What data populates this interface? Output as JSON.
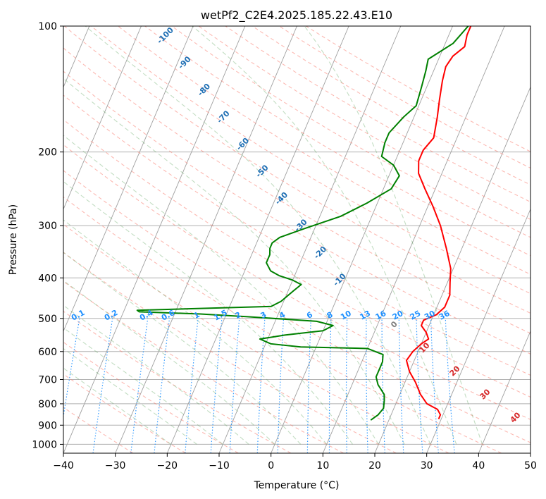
{
  "chart_data": {
    "type": "line",
    "title": "wetPf2_C2E4.2025.185.22.43.E10",
    "xlabel": "Temperature (°C)",
    "ylabel": "Pressure (hPa)",
    "xlim": [
      -40,
      50
    ],
    "ylim": [
      1050,
      100
    ],
    "y_scale": "log",
    "grid": true,
    "x_ticks": [
      "−40",
      "−30",
      "−20",
      "−10",
      "0",
      "10",
      "20",
      "30",
      "40",
      "50"
    ],
    "x_tick_values": [
      -40,
      -30,
      -20,
      -10,
      0,
      10,
      20,
      30,
      40,
      50
    ],
    "y_ticks": [
      "100",
      "200",
      "300",
      "400",
      "500",
      "600",
      "700",
      "800",
      "900",
      "1000"
    ],
    "y_tick_values": [
      100,
      200,
      300,
      400,
      500,
      600,
      700,
      800,
      900,
      1000
    ],
    "dry_adiabat_labels": [
      "-100",
      "-90",
      "-80",
      "-70",
      "-60",
      "-50",
      "-40",
      "-30",
      "-20",
      "-10",
      "0",
      "10",
      "20",
      "30",
      "40"
    ],
    "mixing_ratio_labels": [
      "0.1",
      "0.2",
      "0.4",
      "0.6",
      "1",
      "1.5",
      "2",
      "3",
      "4",
      "6",
      "8",
      "10",
      "13",
      "16",
      "20",
      "25",
      "30",
      "36"
    ],
    "mixing_ratio_values": [
      0.1,
      0.2,
      0.4,
      0.6,
      1,
      1.5,
      2,
      3,
      4,
      6,
      8,
      10,
      13,
      16,
      20,
      25,
      30,
      36
    ],
    "series": [
      {
        "color": "#ff0000",
        "points": [
          [
            29.5,
            870
          ],
          [
            29.5,
            850
          ],
          [
            28.5,
            825
          ],
          [
            26,
            800
          ],
          [
            24,
            760
          ],
          [
            22,
            710
          ],
          [
            20,
            670
          ],
          [
            18.5,
            630
          ],
          [
            19,
            600
          ],
          [
            20,
            575
          ],
          [
            21,
            560
          ],
          [
            20,
            540
          ],
          [
            18.5,
            520
          ],
          [
            18.5,
            505
          ],
          [
            20.5,
            490
          ],
          [
            21.5,
            470
          ],
          [
            21.5,
            440
          ],
          [
            20.5,
            410
          ],
          [
            19.5,
            380
          ],
          [
            17,
            340
          ],
          [
            14,
            300
          ],
          [
            11,
            270
          ],
          [
            8,
            245
          ],
          [
            5.5,
            225
          ],
          [
            4.5,
            210
          ],
          [
            4.5,
            198
          ],
          [
            5.5,
            185
          ],
          [
            4.5,
            165
          ],
          [
            3.5,
            150
          ],
          [
            2.5,
            135
          ],
          [
            2,
            125
          ],
          [
            2.5,
            118
          ],
          [
            4,
            112
          ],
          [
            3.5,
            105
          ],
          [
            3.5,
            100
          ]
        ]
      },
      {
        "color": "#008000",
        "points": [
          [
            16.5,
            875
          ],
          [
            17.5,
            850
          ],
          [
            18,
            820
          ],
          [
            17.5,
            785
          ],
          [
            17,
            760
          ],
          [
            15,
            720
          ],
          [
            14,
            690
          ],
          [
            14,
            660
          ],
          [
            14,
            635
          ],
          [
            13.5,
            610
          ],
          [
            10,
            590
          ],
          [
            -3,
            585
          ],
          [
            -9,
            575
          ],
          [
            -11.5,
            560
          ],
          [
            -7,
            548
          ],
          [
            0,
            535
          ],
          [
            1.5,
            520
          ],
          [
            -2,
            508
          ],
          [
            -16,
            495
          ],
          [
            -25,
            488
          ],
          [
            -37,
            482
          ],
          [
            -37.5,
            478
          ],
          [
            -12,
            468
          ],
          [
            -10.5,
            455
          ],
          [
            -9,
            430
          ],
          [
            -8,
            415
          ],
          [
            -10,
            405
          ],
          [
            -13,
            395
          ],
          [
            -15,
            385
          ],
          [
            -16.5,
            368
          ],
          [
            -16.5,
            352
          ],
          [
            -17,
            340
          ],
          [
            -17,
            330
          ],
          [
            -16,
            320
          ],
          [
            -12,
            305
          ],
          [
            -6,
            285
          ],
          [
            -2,
            265
          ],
          [
            1.5,
            245
          ],
          [
            2,
            228
          ],
          [
            0,
            215
          ],
          [
            -3,
            205
          ],
          [
            -3.5,
            190
          ],
          [
            -3.5,
            180
          ],
          [
            -2,
            165
          ],
          [
            -0.5,
            155
          ],
          [
            -1,
            140
          ],
          [
            -1.5,
            128
          ],
          [
            -2,
            120
          ],
          [
            1.5,
            110
          ],
          [
            3,
            100
          ]
        ]
      }
    ]
  },
  "colors": {
    "temperature": "#ff0000",
    "dewpoint": "#008000",
    "dry_adiabat": "#fa8072",
    "moist_adiabat": "#66aa66",
    "mixing_ratio": "#1e90ff",
    "isotherm": "#808080",
    "dry_adiabat_label": "#1f6fb4",
    "warm_adiabat_label": "#d62728"
  }
}
